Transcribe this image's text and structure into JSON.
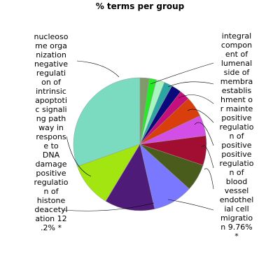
{
  "chart_data": {
    "type": "pie",
    "title": "% terms per group",
    "slices": [
      {
        "label": "nucleosome organization",
        "value": 30.5,
        "color": "#7adbc0"
      },
      {
        "label": "negative regulation of intrinsic apoptotic signaling pathway in response to DNA damage",
        "value": 11.0,
        "color": "#a2e510"
      },
      {
        "label": "positive regulation of histone deacetylation",
        "value": 12.2,
        "color": "#4f1b78"
      },
      {
        "label": "endothelial cell migration",
        "value": 9.76,
        "color": "#7a78ff"
      },
      {
        "label": "positive regulation of blood vessel",
        "value": 6.6,
        "color": "#4a5c1c"
      },
      {
        "label": "positive",
        "value": 7.2,
        "color": "#a10e32"
      },
      {
        "label": "positive regulation",
        "value": 5.0,
        "color": "#d34ee6"
      },
      {
        "label": "establishment or maintenance",
        "value": 5.0,
        "color": "#d83f0d"
      },
      {
        "label": "lumenal side of membrane",
        "value": 2.5,
        "color": "#c4107c"
      },
      {
        "label": "integral component of",
        "value": 2.5,
        "color": "#0a0a7c"
      },
      {
        "label": "",
        "value": 2.0,
        "color": "#2ba6a2"
      },
      {
        "label": "",
        "value": 2.0,
        "color": "#a8f5c0"
      },
      {
        "label": "",
        "value": 1.8,
        "color": "#27ea27"
      },
      {
        "label": "",
        "value": 2.2,
        "color": "#7f996a"
      }
    ]
  },
  "labels": {
    "left": "nucleoso\nme orga\nnization\nnegative\nregulati\non of\nintrinsic\napoptoti\nc signali\nng path\nway in\nrespons\ne to\nDNA\ndamage\npositive\nregulatio\nn of\nhistone\ndeacetyl\nation 12\n.2% *",
    "right": "integral\ncompon\nent of\nlumenal\nside of\nmembra\nestablis\nhment o\nr mainte\npositive\nregulatio\nn of\npositive\npositive\nregulatio\nn of\nblood\nvessel\nendothel\nial cell\nmigratio\nn 9.76%\n*"
  }
}
